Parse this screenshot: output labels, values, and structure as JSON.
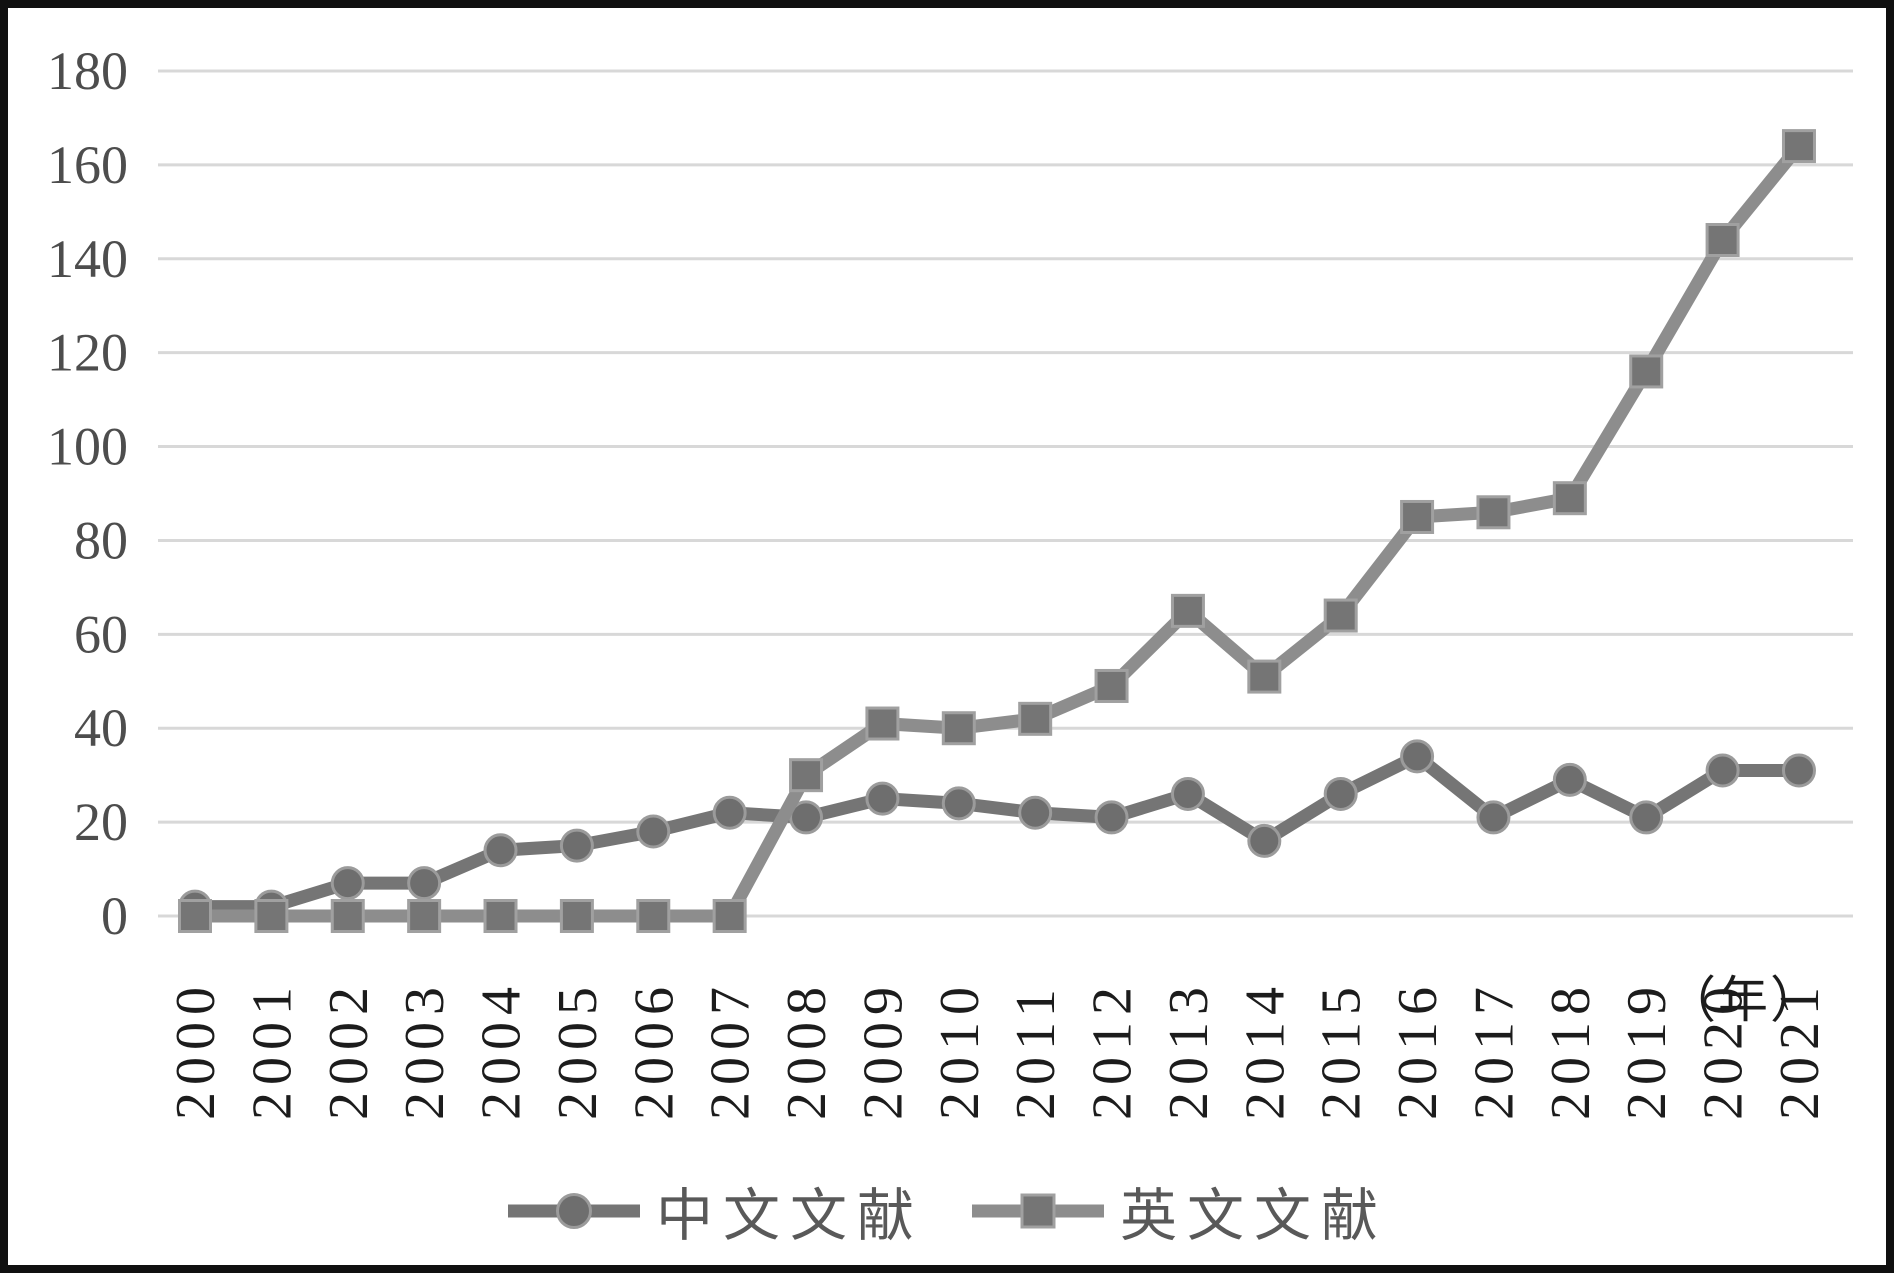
{
  "frame": {
    "background": "#ffffff",
    "border_color": "#101010"
  },
  "chart_data": {
    "type": "line",
    "title": "",
    "xlabel": "",
    "ylabel": "",
    "x_unit_label": "（年）",
    "categories": [
      "2000",
      "2001",
      "2002",
      "2003",
      "2004",
      "2005",
      "2006",
      "2007",
      "2008",
      "2009",
      "2010",
      "2011",
      "2012",
      "2013",
      "2014",
      "2015",
      "2016",
      "2017",
      "2018",
      "2019",
      "2020",
      "2021"
    ],
    "series": [
      {
        "name": "中文文献",
        "marker": "circle",
        "line_color": "#757575",
        "marker_fill": "#6e6e6e",
        "marker_stroke": "#9b9b9b",
        "values": [
          2,
          2,
          7,
          7,
          14,
          15,
          18,
          22,
          21,
          25,
          24,
          22,
          21,
          26,
          16,
          26,
          34,
          21,
          29,
          21,
          31,
          31
        ]
      },
      {
        "name": "英文文献",
        "marker": "square",
        "line_color": "#8d8d8d",
        "marker_fill": "#757575",
        "marker_stroke": "#a0a0a0",
        "values": [
          0,
          0,
          0,
          0,
          0,
          0,
          0,
          0,
          30,
          41,
          40,
          42,
          49,
          65,
          51,
          64,
          85,
          86,
          89,
          116,
          144,
          164
        ]
      }
    ],
    "ylim": [
      0,
      180
    ],
    "yticks": [
      0,
      20,
      40,
      60,
      80,
      100,
      120,
      140,
      160,
      180
    ],
    "grid": "horizontal",
    "gridline_color": "#d8d8d8",
    "y_tick_label_color": "#4d4d4d",
    "x_tick_label_color": "#1c1c1c",
    "legend_position": "bottom",
    "legend_text_color": "#595959"
  }
}
